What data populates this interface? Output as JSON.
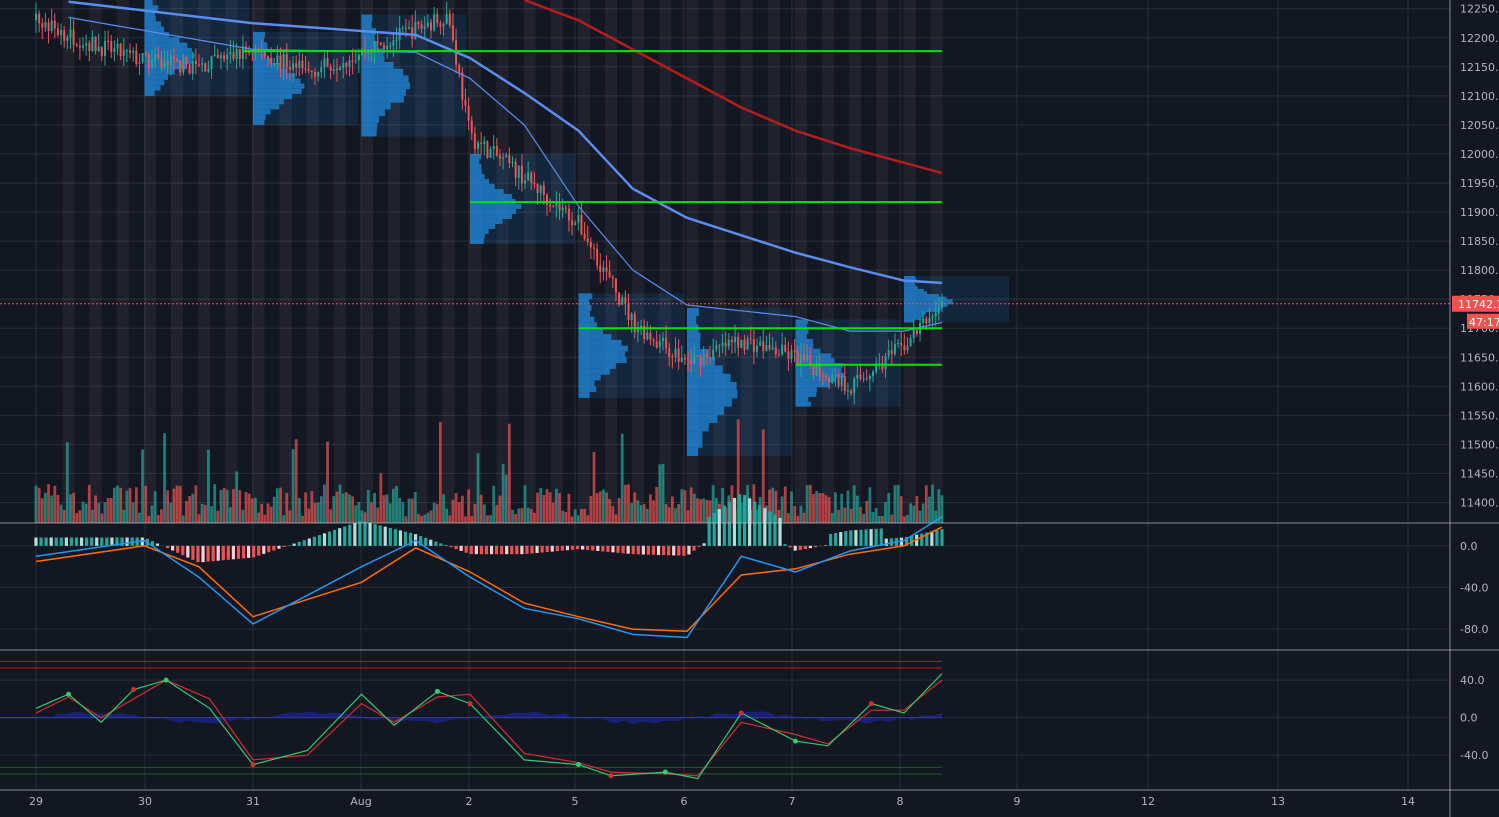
{
  "colors": {
    "background": "#131722",
    "grid": "#2a2e39",
    "axis_text": "#b2b5be",
    "up": "#26a69a",
    "down": "#ef5350",
    "price_line": "#ef5350",
    "level_lines": "#00e600",
    "ema_fast": "#5b8def",
    "sma_slow": "#b71c1c",
    "volume_profile": "#2196f3",
    "macd_line": "#2196f3",
    "signal_line": "#ff6d00",
    "wt1": "#2ecc71",
    "wt2": "#d32f2f",
    "ob_line": "#b71c1c",
    "os_line": "#1b5e20"
  },
  "chart_data": [
    {
      "panel": "price",
      "type": "candlestick",
      "x_ticks": [
        "29",
        "30",
        "31",
        "Aug",
        "2",
        "5",
        "6",
        "7",
        "8",
        "9",
        "12",
        "13",
        "14"
      ],
      "y_ticks": [
        "12250.0",
        "12200.0",
        "12150.0",
        "12100.0",
        "12050.0",
        "12000.0",
        "11950.0",
        "11900.0",
        "11850.0",
        "11800.0",
        "11750.0",
        "11700.0",
        "11650.0",
        "11600.0",
        "11550.0",
        "11500.0",
        "11450.0",
        "11400.0"
      ],
      "ylim": [
        11375,
        12265
      ],
      "last_price": "11742.1",
      "countdown": "47:17",
      "horizontal_levels": [
        12177,
        11917,
        11700,
        11637
      ],
      "anchors": [
        {
          "day": 0.0,
          "price": 12230
        },
        {
          "day": 0.5,
          "price": 12190
        },
        {
          "day": 1.0,
          "price": 12160
        },
        {
          "day": 1.5,
          "price": 12150
        },
        {
          "day": 2.0,
          "price": 12180
        },
        {
          "day": 2.5,
          "price": 12140
        },
        {
          "day": 3.0,
          "price": 12175
        },
        {
          "day": 3.5,
          "price": 12215
        },
        {
          "day": 3.8,
          "price": 12240
        },
        {
          "day": 4.0,
          "price": 12030
        },
        {
          "day": 4.5,
          "price": 11960
        },
        {
          "day": 5.0,
          "price": 11880
        },
        {
          "day": 5.5,
          "price": 11710
        },
        {
          "day": 6.0,
          "price": 11640
        },
        {
          "day": 6.5,
          "price": 11680
        },
        {
          "day": 7.0,
          "price": 11650
        },
        {
          "day": 7.5,
          "price": 11600
        },
        {
          "day": 8.0,
          "price": 11670
        },
        {
          "day": 8.35,
          "price": 11742
        }
      ],
      "ema_fast": [
        {
          "day": 0.3,
          "price": 12262
        },
        {
          "day": 2.0,
          "price": 12225
        },
        {
          "day": 3.5,
          "price": 12205
        },
        {
          "day": 4.0,
          "price": 12165
        },
        {
          "day": 4.5,
          "price": 12105
        },
        {
          "day": 5.0,
          "price": 12040
        },
        {
          "day": 5.5,
          "price": 11940
        },
        {
          "day": 6.0,
          "price": 11890
        },
        {
          "day": 6.5,
          "price": 11860
        },
        {
          "day": 7.0,
          "price": 11830
        },
        {
          "day": 7.5,
          "price": 11805
        },
        {
          "day": 8.0,
          "price": 11782
        },
        {
          "day": 8.35,
          "price": 11778
        }
      ],
      "ema_mid": [
        {
          "day": 0.3,
          "price": 12235
        },
        {
          "day": 2.0,
          "price": 12180
        },
        {
          "day": 3.5,
          "price": 12175
        },
        {
          "day": 4.0,
          "price": 12130
        },
        {
          "day": 4.5,
          "price": 12050
        },
        {
          "day": 5.0,
          "price": 11910
        },
        {
          "day": 5.5,
          "price": 11800
        },
        {
          "day": 6.0,
          "price": 11740
        },
        {
          "day": 6.5,
          "price": 11730
        },
        {
          "day": 7.0,
          "price": 11720
        },
        {
          "day": 7.5,
          "price": 11695
        },
        {
          "day": 8.0,
          "price": 11695
        },
        {
          "day": 8.35,
          "price": 11710
        }
      ],
      "sma_slow": [
        {
          "day": 4.5,
          "price": 12265
        },
        {
          "day": 5.0,
          "price": 12230
        },
        {
          "day": 5.5,
          "price": 12180
        },
        {
          "day": 6.0,
          "price": 12130
        },
        {
          "day": 6.5,
          "price": 12080
        },
        {
          "day": 7.0,
          "price": 12040
        },
        {
          "day": 7.5,
          "price": 12010
        },
        {
          "day": 8.0,
          "price": 11985
        },
        {
          "day": 8.35,
          "price": 11967
        }
      ],
      "volume_ylim": [
        0,
        1.0
      ]
    },
    {
      "panel": "macd",
      "type": "line",
      "y_ticks": [
        "0.0",
        "-40.0",
        "-80.0"
      ],
      "ylim": [
        -100,
        20
      ],
      "macd": [
        {
          "day": 0.0,
          "v": -10
        },
        {
          "day": 1.0,
          "v": 5
        },
        {
          "day": 1.5,
          "v": -30
        },
        {
          "day": 2.0,
          "v": -75
        },
        {
          "day": 3.0,
          "v": -20
        },
        {
          "day": 3.5,
          "v": 5
        },
        {
          "day": 4.0,
          "v": -30
        },
        {
          "day": 4.5,
          "v": -60
        },
        {
          "day": 5.0,
          "v": -70
        },
        {
          "day": 5.5,
          "v": -85
        },
        {
          "day": 6.0,
          "v": -88
        },
        {
          "day": 6.5,
          "v": -10
        },
        {
          "day": 7.0,
          "v": -25
        },
        {
          "day": 7.5,
          "v": -5
        },
        {
          "day": 8.0,
          "v": 5
        },
        {
          "day": 8.35,
          "v": 28
        }
      ],
      "signal": [
        {
          "day": 0.0,
          "v": -15
        },
        {
          "day": 1.0,
          "v": 0
        },
        {
          "day": 1.5,
          "v": -20
        },
        {
          "day": 2.0,
          "v": -68
        },
        {
          "day": 3.0,
          "v": -35
        },
        {
          "day": 3.5,
          "v": -2
        },
        {
          "day": 4.0,
          "v": -25
        },
        {
          "day": 4.5,
          "v": -55
        },
        {
          "day": 5.0,
          "v": -68
        },
        {
          "day": 5.5,
          "v": -80
        },
        {
          "day": 6.0,
          "v": -82
        },
        {
          "day": 6.5,
          "v": -28
        },
        {
          "day": 7.0,
          "v": -22
        },
        {
          "day": 7.5,
          "v": -8
        },
        {
          "day": 8.0,
          "v": 0
        },
        {
          "day": 8.35,
          "v": 18
        }
      ]
    },
    {
      "panel": "wavetrend",
      "type": "line",
      "y_ticks": [
        "40.0",
        "0.0",
        "-40.0"
      ],
      "ylim": [
        -75,
        70
      ],
      "overbought": [
        60,
        53
      ],
      "oversold": [
        -60,
        -53
      ],
      "wt1": [
        {
          "day": 0.0,
          "v": 10
        },
        {
          "day": 0.3,
          "v": 25
        },
        {
          "day": 0.6,
          "v": -5
        },
        {
          "day": 0.9,
          "v": 30
        },
        {
          "day": 1.2,
          "v": 40
        },
        {
          "day": 1.6,
          "v": 10
        },
        {
          "day": 2.0,
          "v": -50
        },
        {
          "day": 2.5,
          "v": -35
        },
        {
          "day": 3.0,
          "v": 25
        },
        {
          "day": 3.3,
          "v": -8
        },
        {
          "day": 3.7,
          "v": 28
        },
        {
          "day": 4.0,
          "v": 15
        },
        {
          "day": 4.5,
          "v": -45
        },
        {
          "day": 5.0,
          "v": -50
        },
        {
          "day": 5.3,
          "v": -62
        },
        {
          "day": 5.8,
          "v": -58
        },
        {
          "day": 6.1,
          "v": -65
        },
        {
          "day": 6.5,
          "v": 5
        },
        {
          "day": 7.0,
          "v": -25
        },
        {
          "day": 7.3,
          "v": -30
        },
        {
          "day": 7.7,
          "v": 15
        },
        {
          "day": 8.0,
          "v": 5
        },
        {
          "day": 8.35,
          "v": 47
        }
      ],
      "wt2": [
        {
          "day": 0.0,
          "v": 5
        },
        {
          "day": 0.3,
          "v": 22
        },
        {
          "day": 0.6,
          "v": 0
        },
        {
          "day": 0.9,
          "v": 20
        },
        {
          "day": 1.2,
          "v": 40
        },
        {
          "day": 1.6,
          "v": 20
        },
        {
          "day": 2.0,
          "v": -45
        },
        {
          "day": 2.5,
          "v": -40
        },
        {
          "day": 3.0,
          "v": 15
        },
        {
          "day": 3.3,
          "v": -5
        },
        {
          "day": 3.7,
          "v": 22
        },
        {
          "day": 4.0,
          "v": 25
        },
        {
          "day": 4.5,
          "v": -38
        },
        {
          "day": 5.0,
          "v": -48
        },
        {
          "day": 5.3,
          "v": -58
        },
        {
          "day": 5.8,
          "v": -60
        },
        {
          "day": 6.1,
          "v": -62
        },
        {
          "day": 6.5,
          "v": -5
        },
        {
          "day": 7.0,
          "v": -18
        },
        {
          "day": 7.3,
          "v": -28
        },
        {
          "day": 7.7,
          "v": 8
        },
        {
          "day": 8.0,
          "v": 8
        },
        {
          "day": 8.35,
          "v": 40
        }
      ]
    }
  ]
}
